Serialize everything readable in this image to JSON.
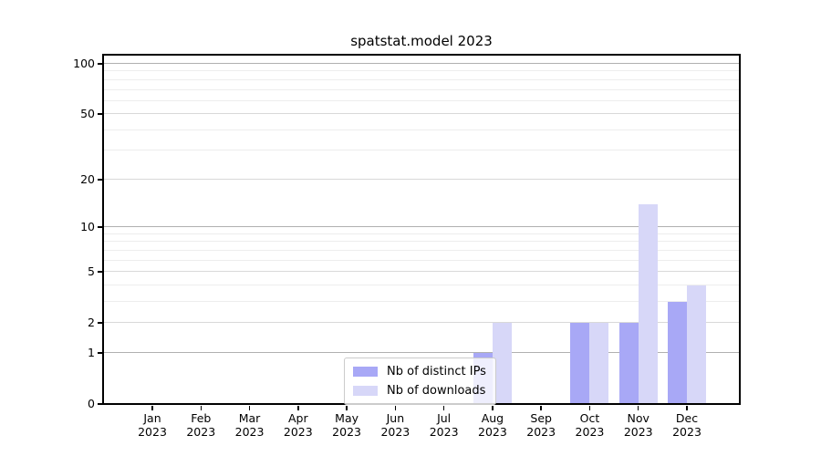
{
  "title": "spatstat.model 2023",
  "chart_data": {
    "type": "bar",
    "title": "spatstat.model 2023",
    "categories": [
      "Jan 2023",
      "Feb 2023",
      "Mar 2023",
      "Apr 2023",
      "May 2023",
      "Jun 2023",
      "Jul 2023",
      "Aug 2023",
      "Sep 2023",
      "Oct 2023",
      "Nov 2023",
      "Dec 2023"
    ],
    "series": [
      {
        "name": "Nb of distinct IPs",
        "color": "#a8a8f6",
        "values": [
          0,
          0,
          0,
          0,
          0,
          0,
          0,
          1,
          0,
          2,
          2,
          3
        ]
      },
      {
        "name": "Nb of downloads",
        "color": "#d7d7f8",
        "values": [
          0,
          0,
          0,
          0,
          0,
          0,
          0,
          2,
          0,
          2,
          14,
          4
        ]
      }
    ],
    "xlabel": "",
    "ylabel": "",
    "y_scale": "log1p",
    "ylim": [
      0,
      113
    ],
    "y_ticks": [
      0,
      1,
      2,
      5,
      10,
      20,
      50,
      100
    ],
    "y_minor_ticks": [
      3,
      4,
      6,
      7,
      8,
      9,
      30,
      40,
      60,
      70,
      80,
      90
    ],
    "grid": true,
    "legend_position": "lower center"
  },
  "colors": {
    "decade_grid": "#b0b0b0",
    "mid_grid": "#d9d9d9",
    "minor_grid": "#ededed",
    "axis": "#000000",
    "background": "#ffffff"
  }
}
